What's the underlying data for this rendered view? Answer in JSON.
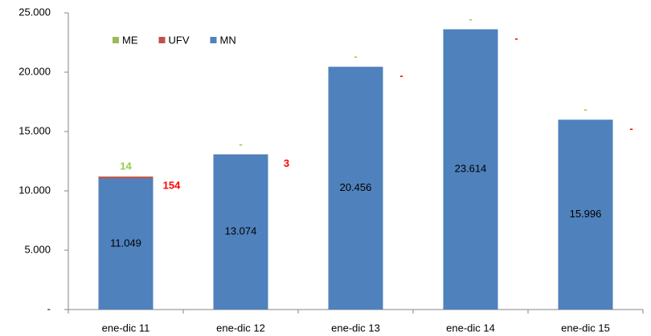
{
  "chart_data": {
    "type": "stacked_bar",
    "categories": [
      "ene-dic 11",
      "ene-dic 12",
      "ene-dic 13",
      "ene-dic 14",
      "ene-dic 15"
    ],
    "series": [
      {
        "name": "MN",
        "color": "#4f81bd",
        "values": [
          11049,
          13074,
          20456,
          23614,
          15996
        ],
        "value_labels": [
          "11.049",
          "13.074",
          "20.456",
          "23.614",
          "15.996"
        ],
        "label_color": "#000000"
      },
      {
        "name": "UFV",
        "color": "#c0504d",
        "values": [
          154,
          3,
          0,
          0,
          0
        ],
        "value_labels": [
          "154",
          "3",
          "-",
          "-",
          "-"
        ],
        "label_color": "#ff0000"
      },
      {
        "name": "ME",
        "color": "#9bbb59",
        "values": [
          14,
          0,
          0,
          0,
          0
        ],
        "value_labels": [
          "14",
          "-",
          "-",
          "-",
          "-"
        ],
        "label_color": "#92d050"
      }
    ],
    "legend_order": [
      "ME",
      "UFV",
      "MN"
    ],
    "ylim": [
      0,
      25000
    ],
    "yticks": [
      {
        "value": 0,
        "label": "-"
      },
      {
        "value": 5000,
        "label": "5.000"
      },
      {
        "value": 10000,
        "label": "10.000"
      },
      {
        "value": 15000,
        "label": "15.000"
      },
      {
        "value": 20000,
        "label": "20.000"
      },
      {
        "value": 25000,
        "label": "25.000"
      }
    ],
    "legend": "top-left"
  }
}
